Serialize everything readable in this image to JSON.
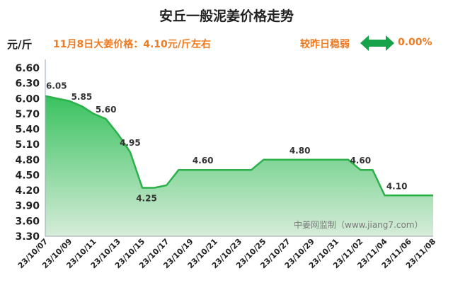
{
  "header": {
    "title": "安丘一般泥姜价格走势",
    "unit": "元/斤",
    "price_note": "11月8日大姜价格：4.10元/斤左右",
    "compare_label": "较昨日稳弱",
    "change_pct": "0.00%"
  },
  "icons": {
    "change_arrow": "left-right-arrow-icon"
  },
  "colors": {
    "line": "#2bb04a",
    "fill_top": "#39c25f",
    "fill_bottom": "#d6ecd9",
    "accent": "#f07a1f",
    "arrow": "#16a34a"
  },
  "watermark": "中姜网监制（www.jiang7.com）",
  "chart_data": {
    "type": "area",
    "xlabel": "",
    "ylabel": "",
    "ylim": [
      3.3,
      6.6
    ],
    "yticks": [
      "3.30",
      "3.60",
      "3.90",
      "4.20",
      "4.50",
      "4.80",
      "5.10",
      "5.40",
      "5.70",
      "6.00",
      "6.30",
      "6.60"
    ],
    "x_tick_labels": [
      "23/10/07",
      "23/10/09",
      "23/10/11",
      "23/10/13",
      "23/10/15",
      "23/10/17",
      "23/10/19",
      "23/10/21",
      "23/10/23",
      "23/10/25",
      "23/10/27",
      "23/10/29",
      "23/10/31",
      "23/11/02",
      "23/11/04",
      "23/11/06",
      "23/11/08"
    ],
    "grid": false,
    "legend": "none",
    "x": [
      "23/10/07",
      "23/10/08",
      "23/10/09",
      "23/10/10",
      "23/10/11",
      "23/10/12",
      "23/10/13",
      "23/10/14",
      "23/10/15",
      "23/10/16",
      "23/10/17",
      "23/10/18",
      "23/10/19",
      "23/10/20",
      "23/10/21",
      "23/10/22",
      "23/10/23",
      "23/10/24",
      "23/10/25",
      "23/10/26",
      "23/10/27",
      "23/10/28",
      "23/10/29",
      "23/10/30",
      "23/10/31",
      "23/11/01",
      "23/11/02",
      "23/11/03",
      "23/11/04",
      "23/11/05",
      "23/11/06",
      "23/11/07",
      "23/11/08"
    ],
    "values": [
      6.05,
      6.0,
      5.95,
      5.85,
      5.7,
      5.6,
      5.3,
      4.95,
      4.25,
      4.25,
      4.3,
      4.6,
      4.6,
      4.6,
      4.6,
      4.6,
      4.6,
      4.6,
      4.8,
      4.8,
      4.8,
      4.8,
      4.8,
      4.8,
      4.8,
      4.8,
      4.6,
      4.6,
      4.1,
      4.1,
      4.1,
      4.1,
      4.1
    ],
    "data_labels": [
      {
        "x": "23/10/07",
        "text": "6.05"
      },
      {
        "x": "23/10/10",
        "text": "5.85"
      },
      {
        "x": "23/10/12",
        "text": "5.60"
      },
      {
        "x": "23/10/14",
        "text": "4.95"
      },
      {
        "x": "23/10/15",
        "text": "4.25"
      },
      {
        "x": "23/10/20",
        "text": "4.60"
      },
      {
        "x": "23/10/28",
        "text": "4.80"
      },
      {
        "x": "23/11/02",
        "text": "4.60"
      },
      {
        "x": "23/11/05",
        "text": "4.10"
      }
    ]
  }
}
